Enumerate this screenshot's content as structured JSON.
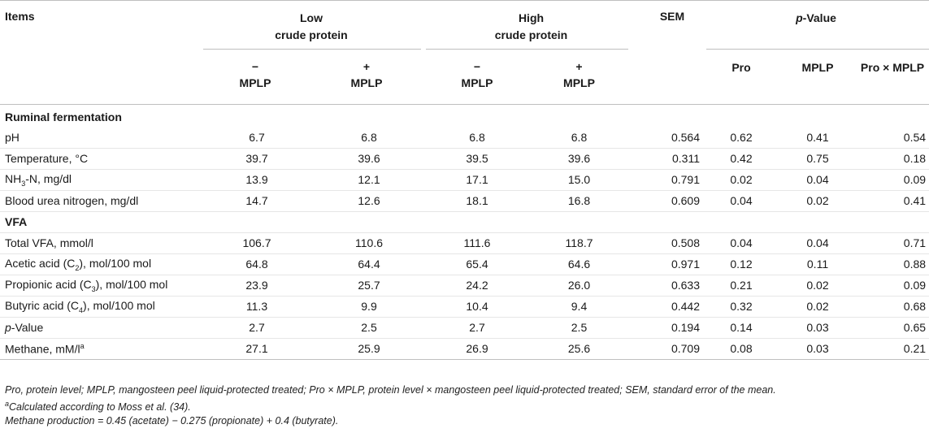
{
  "header": {
    "items": "Items",
    "low_line1": "Low",
    "low_line2": "crude protein",
    "high_line1": "High",
    "high_line2": "crude protein",
    "sem": "SEM",
    "pvalue_italic": "p",
    "pvalue_rest": "-Value",
    "minus": "−",
    "plus": "+",
    "mplp": "MPLP",
    "pro": "Pro",
    "mplp_col": "MPLP",
    "pro_x_mplp": "Pro × MPLP"
  },
  "sections": {
    "ruminal": "Ruminal fermentation",
    "vfa": "VFA"
  },
  "rows": {
    "ph": {
      "label": "pH",
      "v": [
        "6.7",
        "6.8",
        "6.8",
        "6.8",
        "0.564",
        "0.62",
        "0.41",
        "0.54"
      ]
    },
    "temp": {
      "label": "Temperature, °C",
      "v": [
        "39.7",
        "39.6",
        "39.5",
        "39.6",
        "0.311",
        "0.42",
        "0.75",
        "0.18"
      ]
    },
    "nh3": {
      "label_a": "NH",
      "label_sub": "3",
      "label_b": "-N, mg/dl",
      "v": [
        "13.9",
        "12.1",
        "17.1",
        "15.0",
        "0.791",
        "0.02",
        "0.04",
        "0.09"
      ]
    },
    "bun": {
      "label": "Blood urea nitrogen, mg/dl",
      "v": [
        "14.7",
        "12.6",
        "18.1",
        "16.8",
        "0.609",
        "0.04",
        "0.02",
        "0.41"
      ]
    },
    "total_vfa": {
      "label": "Total VFA, mmol/l",
      "v": [
        "106.7",
        "110.6",
        "111.6",
        "118.7",
        "0.508",
        "0.04",
        "0.04",
        "0.71"
      ]
    },
    "acetic": {
      "label_a": "Acetic acid (C",
      "label_sub": "2",
      "label_b": "), mol/100 mol",
      "v": [
        "64.8",
        "64.4",
        "65.4",
        "64.6",
        "0.971",
        "0.12",
        "0.11",
        "0.88"
      ]
    },
    "propionic": {
      "label_a": "Propionic acid (C",
      "label_sub": "3",
      "label_b": "), mol/100 mol",
      "v": [
        "23.9",
        "25.7",
        "24.2",
        "26.0",
        "0.633",
        "0.21",
        "0.02",
        "0.09"
      ]
    },
    "butyric": {
      "label_a": "Butyric acid (C",
      "label_sub": "4",
      "label_b": "), mol/100 mol",
      "v": [
        "11.3",
        "9.9",
        "10.4",
        "9.4",
        "0.442",
        "0.32",
        "0.02",
        "0.68"
      ]
    },
    "pval": {
      "label_italic": "p",
      "label_rest": "-Value",
      "v": [
        "2.7",
        "2.5",
        "2.7",
        "2.5",
        "0.194",
        "0.14",
        "0.03",
        "0.65"
      ]
    },
    "methane": {
      "label": "Methane, mM/l",
      "label_sup": "a",
      "v": [
        "27.1",
        "25.9",
        "26.9",
        "25.6",
        "0.709",
        "0.08",
        "0.03",
        "0.21"
      ]
    }
  },
  "footnotes": {
    "abbrev": "Pro, protein level; MPLP, mangosteen peel liquid-protected treated; Pro × MPLP, protein level × mangosteen peel liquid-protected treated; SEM, standard error of the mean.",
    "note_a_sup": "a",
    "note_a": "Calculated according to Moss et al. (34).",
    "methane_eq": "Methane production = 0.45 (acetate) − 0.275 (propionate) + 0.4 (butyrate)."
  }
}
